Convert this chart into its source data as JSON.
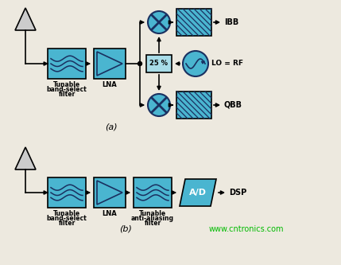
{
  "bg_color": "#ede9df",
  "box_color": "#4ab5d0",
  "box_edge": "#000000",
  "arrow_color": "#000000",
  "text_color": "#000000",
  "label_a": "(a)",
  "label_b": "(b)",
  "watermark": "www.cntronics.com",
  "watermark_color": "#00bb00",
  "fig_w": 4.29,
  "fig_h": 3.33,
  "dpi": 100
}
